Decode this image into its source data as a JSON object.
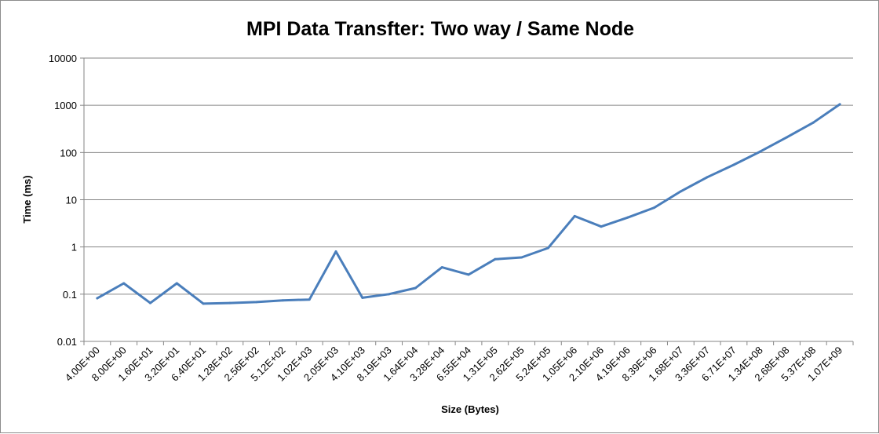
{
  "chart_data": {
    "type": "line",
    "title": "MPI Data Transfter: Two way / Same Node",
    "xlabel": "Size (Bytes)",
    "ylabel": "Time (ms)",
    "yscale": "log",
    "ylim": [
      0.01,
      10000
    ],
    "y_ticks": [
      "10000",
      "1000",
      "100",
      "10",
      "1",
      "0.1",
      "0.01"
    ],
    "grid": "horizontal major gridlines",
    "legend": "none",
    "line_color": "#4a7ebb",
    "categories": [
      "4.00E+00",
      "8.00E+00",
      "1.60E+01",
      "3.20E+01",
      "6.40E+01",
      "1.28E+02",
      "2.56E+02",
      "5.12E+02",
      "1.02E+03",
      "2.05E+03",
      "4.10E+03",
      "8.19E+03",
      "1.64E+04",
      "3.28E+04",
      "6.55E+04",
      "1.31E+05",
      "2.62E+05",
      "5.24E+05",
      "1.05E+06",
      "2.10E+06",
      "4.19E+06",
      "8.39E+06",
      "1.68E+07",
      "3.36E+07",
      "6.71E+07",
      "1.34E+08",
      "2.68E+08",
      "5.37E+08",
      "1.07E+09"
    ],
    "series": [
      {
        "values": [
          0.082,
          0.17,
          0.065,
          0.17,
          0.063,
          0.065,
          0.068,
          0.074,
          0.077,
          0.8,
          0.084,
          0.1,
          0.135,
          0.37,
          0.26,
          0.55,
          0.6,
          0.95,
          4.5,
          2.7,
          4.2,
          6.8,
          15,
          30,
          55,
          105,
          210,
          430,
          1050
        ]
      }
    ]
  }
}
